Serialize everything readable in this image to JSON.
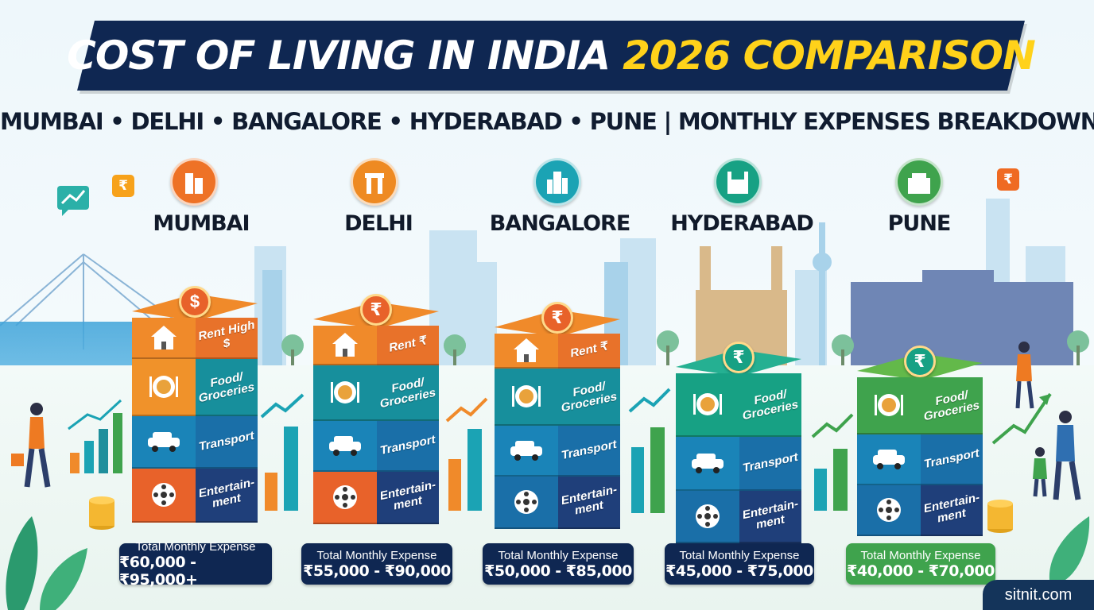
{
  "title": {
    "part1": "COST OF LIVING IN INDIA",
    "part2": "2026 COMPARISON"
  },
  "subtitle": "MUMBAI • DELHI • BANGALORE • HYDERABAD • PUNE | MONTHLY EXPENSES BREAKDOWN",
  "categories": [
    "Food/ Groceries",
    "Transport",
    "Entertain- ment"
  ],
  "total_label": "Total Monthly Expense",
  "cities": [
    {
      "name": "MUMBAI",
      "rent_label": "Rent High",
      "rent_symbol": "$",
      "coin_symbol": "$",
      "total": "₹60,000 - ₹95,000+",
      "accent": "#ef7a22"
    },
    {
      "name": "DELHI",
      "rent_label": "Rent",
      "rent_symbol": "₹",
      "coin_symbol": "₹",
      "total": "₹55,000 - ₹90,000",
      "accent": "#ef7a22"
    },
    {
      "name": "BANGALORE",
      "rent_label": "Rent",
      "rent_symbol": "₹",
      "coin_symbol": "₹",
      "total": "₹50,000 - ₹85,000",
      "accent": "#1ba3b4"
    },
    {
      "name": "HYDERABAD",
      "rent_label": "",
      "rent_symbol": "",
      "coin_symbol": "₹",
      "total": "₹45,000 - ₹75,000",
      "accent": "#17a184"
    },
    {
      "name": "PUNE",
      "rent_label": "",
      "rent_symbol": "",
      "coin_symbol": "₹",
      "total": "₹40,000 - ₹70,000",
      "accent": "#3fa34d"
    }
  ],
  "decor_badges": [
    "₹",
    "₹"
  ],
  "brand": "sitnit.com",
  "colors": {
    "navy": "#0f2752",
    "yellow": "#ffd21a",
    "orange": "#ef7a22",
    "teal": "#1ba3b4",
    "green": "#3fa34d"
  }
}
